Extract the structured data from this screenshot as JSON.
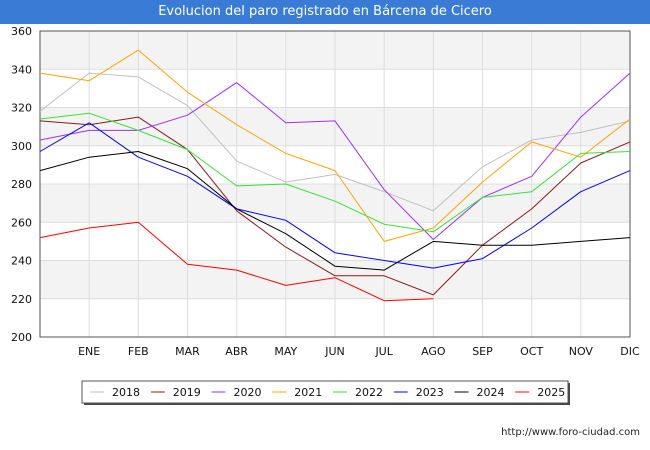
{
  "chart_data": {
    "type": "line",
    "title": "Evolucion del paro registrado en Bárcena de Cicero",
    "categories": [
      "",
      "ENE",
      "FEB",
      "MAR",
      "ABR",
      "MAY",
      "JUN",
      "JUL",
      "AGO",
      "SEP",
      "OCT",
      "NOV",
      "DIC"
    ],
    "ylim": [
      200,
      360
    ],
    "yticks": [
      200,
      220,
      240,
      260,
      280,
      300,
      320,
      340,
      360
    ],
    "xlabel": "",
    "ylabel": "",
    "grid": true,
    "legend_position": "bottom",
    "series": [
      {
        "name": "2018",
        "color": "#c0c0c0",
        "values": [
          318,
          338,
          336,
          321,
          292,
          281,
          285,
          276,
          266,
          289,
          303,
          307,
          313
        ]
      },
      {
        "name": "2019",
        "color": "#8b1a1a",
        "values": [
          313,
          311,
          315,
          298,
          266,
          247,
          232,
          232,
          222,
          248,
          267,
          291,
          302
        ]
      },
      {
        "name": "2020",
        "color": "#9b30ff",
        "values": [
          303,
          308,
          308,
          316,
          333,
          312,
          313,
          277,
          251,
          273,
          284,
          315,
          338
        ]
      },
      {
        "name": "2021",
        "color": "#ffa500",
        "values": [
          338,
          334,
          350,
          328,
          311,
          296,
          287,
          250,
          257,
          281,
          302,
          294,
          314
        ]
      },
      {
        "name": "2022",
        "color": "#32e632",
        "values": [
          314,
          317,
          308,
          298,
          279,
          280,
          271,
          259,
          255,
          273,
          276,
          296,
          297
        ]
      },
      {
        "name": "2023",
        "color": "#0000ff",
        "values": [
          297,
          312,
          294,
          284,
          267,
          261,
          244,
          240,
          236,
          241,
          257,
          276,
          287
        ]
      },
      {
        "name": "2024",
        "color": "#000000",
        "values": [
          287,
          294,
          297,
          288,
          267,
          254,
          237,
          235,
          250,
          248,
          248,
          250,
          252
        ]
      },
      {
        "name": "2025",
        "color": "#ff0000",
        "values": [
          252,
          257,
          260,
          238,
          235,
          227,
          231,
          219,
          220,
          null,
          null,
          null,
          null
        ]
      }
    ]
  },
  "footer": {
    "url": "http://www.foro-ciudad.com"
  }
}
